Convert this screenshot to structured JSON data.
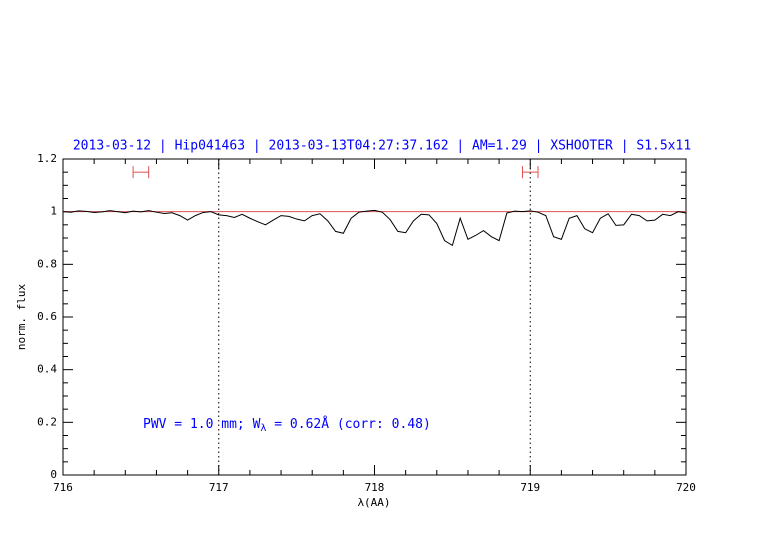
{
  "chart_data": {
    "type": "line",
    "title": "2013-03-12 | Hip041463 | 2013-03-13T04:27:37.162 | AM=1.29 | XSHOOTER | S1.5x11",
    "x_label": "λ(AA)",
    "y_label": "norm. flux",
    "annotation": {
      "main": "PWV = 1.0 mm; W",
      "sub": "λ",
      "rest": " = 0.62Å  (corr: 0.48)"
    },
    "x": [
      716.0,
      716.05,
      716.1,
      716.15,
      716.2,
      716.25,
      716.3,
      716.35,
      716.4,
      716.45,
      716.5,
      716.55,
      716.6,
      716.65,
      716.7,
      716.75,
      716.8,
      716.85,
      716.9,
      716.95,
      717.0,
      717.05,
      717.1,
      717.15,
      717.2,
      717.25,
      717.3,
      717.35,
      717.4,
      717.45,
      717.5,
      717.55,
      717.6,
      717.65,
      717.7,
      717.75,
      717.8,
      717.85,
      717.9,
      717.95,
      718.0,
      718.05,
      718.1,
      718.15,
      718.2,
      718.25,
      718.3,
      718.35,
      718.4,
      718.45,
      718.5,
      718.55,
      718.6,
      718.65,
      718.7,
      718.75,
      718.8,
      718.85,
      718.9,
      718.95,
      719.0,
      719.05,
      719.1,
      719.15,
      719.2,
      719.25,
      719.3,
      719.35,
      719.4,
      719.45,
      719.5,
      719.55,
      719.6,
      719.65,
      719.7,
      719.75,
      719.8,
      719.85,
      719.9,
      719.95,
      720.0
    ],
    "series": [
      {
        "color": "#000000",
        "values": [
          1.0,
          0.998,
          1.003,
          1.001,
          0.997,
          0.999,
          1.004,
          1.0,
          0.996,
          1.002,
          0.999,
          1.004,
          0.998,
          0.993,
          0.996,
          0.985,
          0.968,
          0.985,
          0.997,
          1.0,
          0.988,
          0.985,
          0.978,
          0.99,
          0.975,
          0.962,
          0.95,
          0.968,
          0.985,
          0.982,
          0.972,
          0.965,
          0.985,
          0.992,
          0.965,
          0.925,
          0.918,
          0.975,
          0.998,
          1.002,
          1.005,
          0.998,
          0.97,
          0.925,
          0.92,
          0.965,
          0.99,
          0.988,
          0.955,
          0.89,
          0.872,
          0.975,
          0.895,
          0.91,
          0.928,
          0.905,
          0.89,
          0.995,
          1.002,
          1.0,
          1.003,
          0.998,
          0.985,
          0.905,
          0.895,
          0.975,
          0.985,
          0.935,
          0.92,
          0.975,
          0.992,
          0.948,
          0.95,
          0.99,
          0.985,
          0.965,
          0.968,
          0.99,
          0.985,
          1.0,
          0.995
        ]
      }
    ],
    "reference_line": {
      "value": 1,
      "color": "#e05050"
    },
    "vlines": [
      717,
      719
    ],
    "markers": [
      {
        "x": [
          716.45,
          716.55
        ],
        "y": 1.15,
        "color": "#e05050"
      },
      {
        "x": [
          718.95,
          719.05
        ],
        "y": 1.15,
        "color": "#e05050"
      }
    ],
    "xlim": [
      716,
      720
    ],
    "xticks": [
      716,
      717,
      718,
      719,
      720
    ],
    "xminor": [
      716.2,
      716.4,
      716.6,
      716.8,
      717.2,
      717.4,
      717.6,
      717.8,
      718.2,
      718.4,
      718.6,
      718.8,
      719.2,
      719.4,
      719.6,
      719.8
    ],
    "ylim": [
      0,
      1.2
    ],
    "yticks": [
      0,
      0.2,
      0.4,
      0.6,
      0.8,
      1,
      1.2
    ],
    "yminor": [
      0.05,
      0.1,
      0.15,
      0.25,
      0.3,
      0.35,
      0.45,
      0.5,
      0.55,
      0.65,
      0.7,
      0.75,
      0.85,
      0.9,
      0.95,
      1.05,
      1.1,
      1.15
    ],
    "title_color": "#0000ff"
  }
}
